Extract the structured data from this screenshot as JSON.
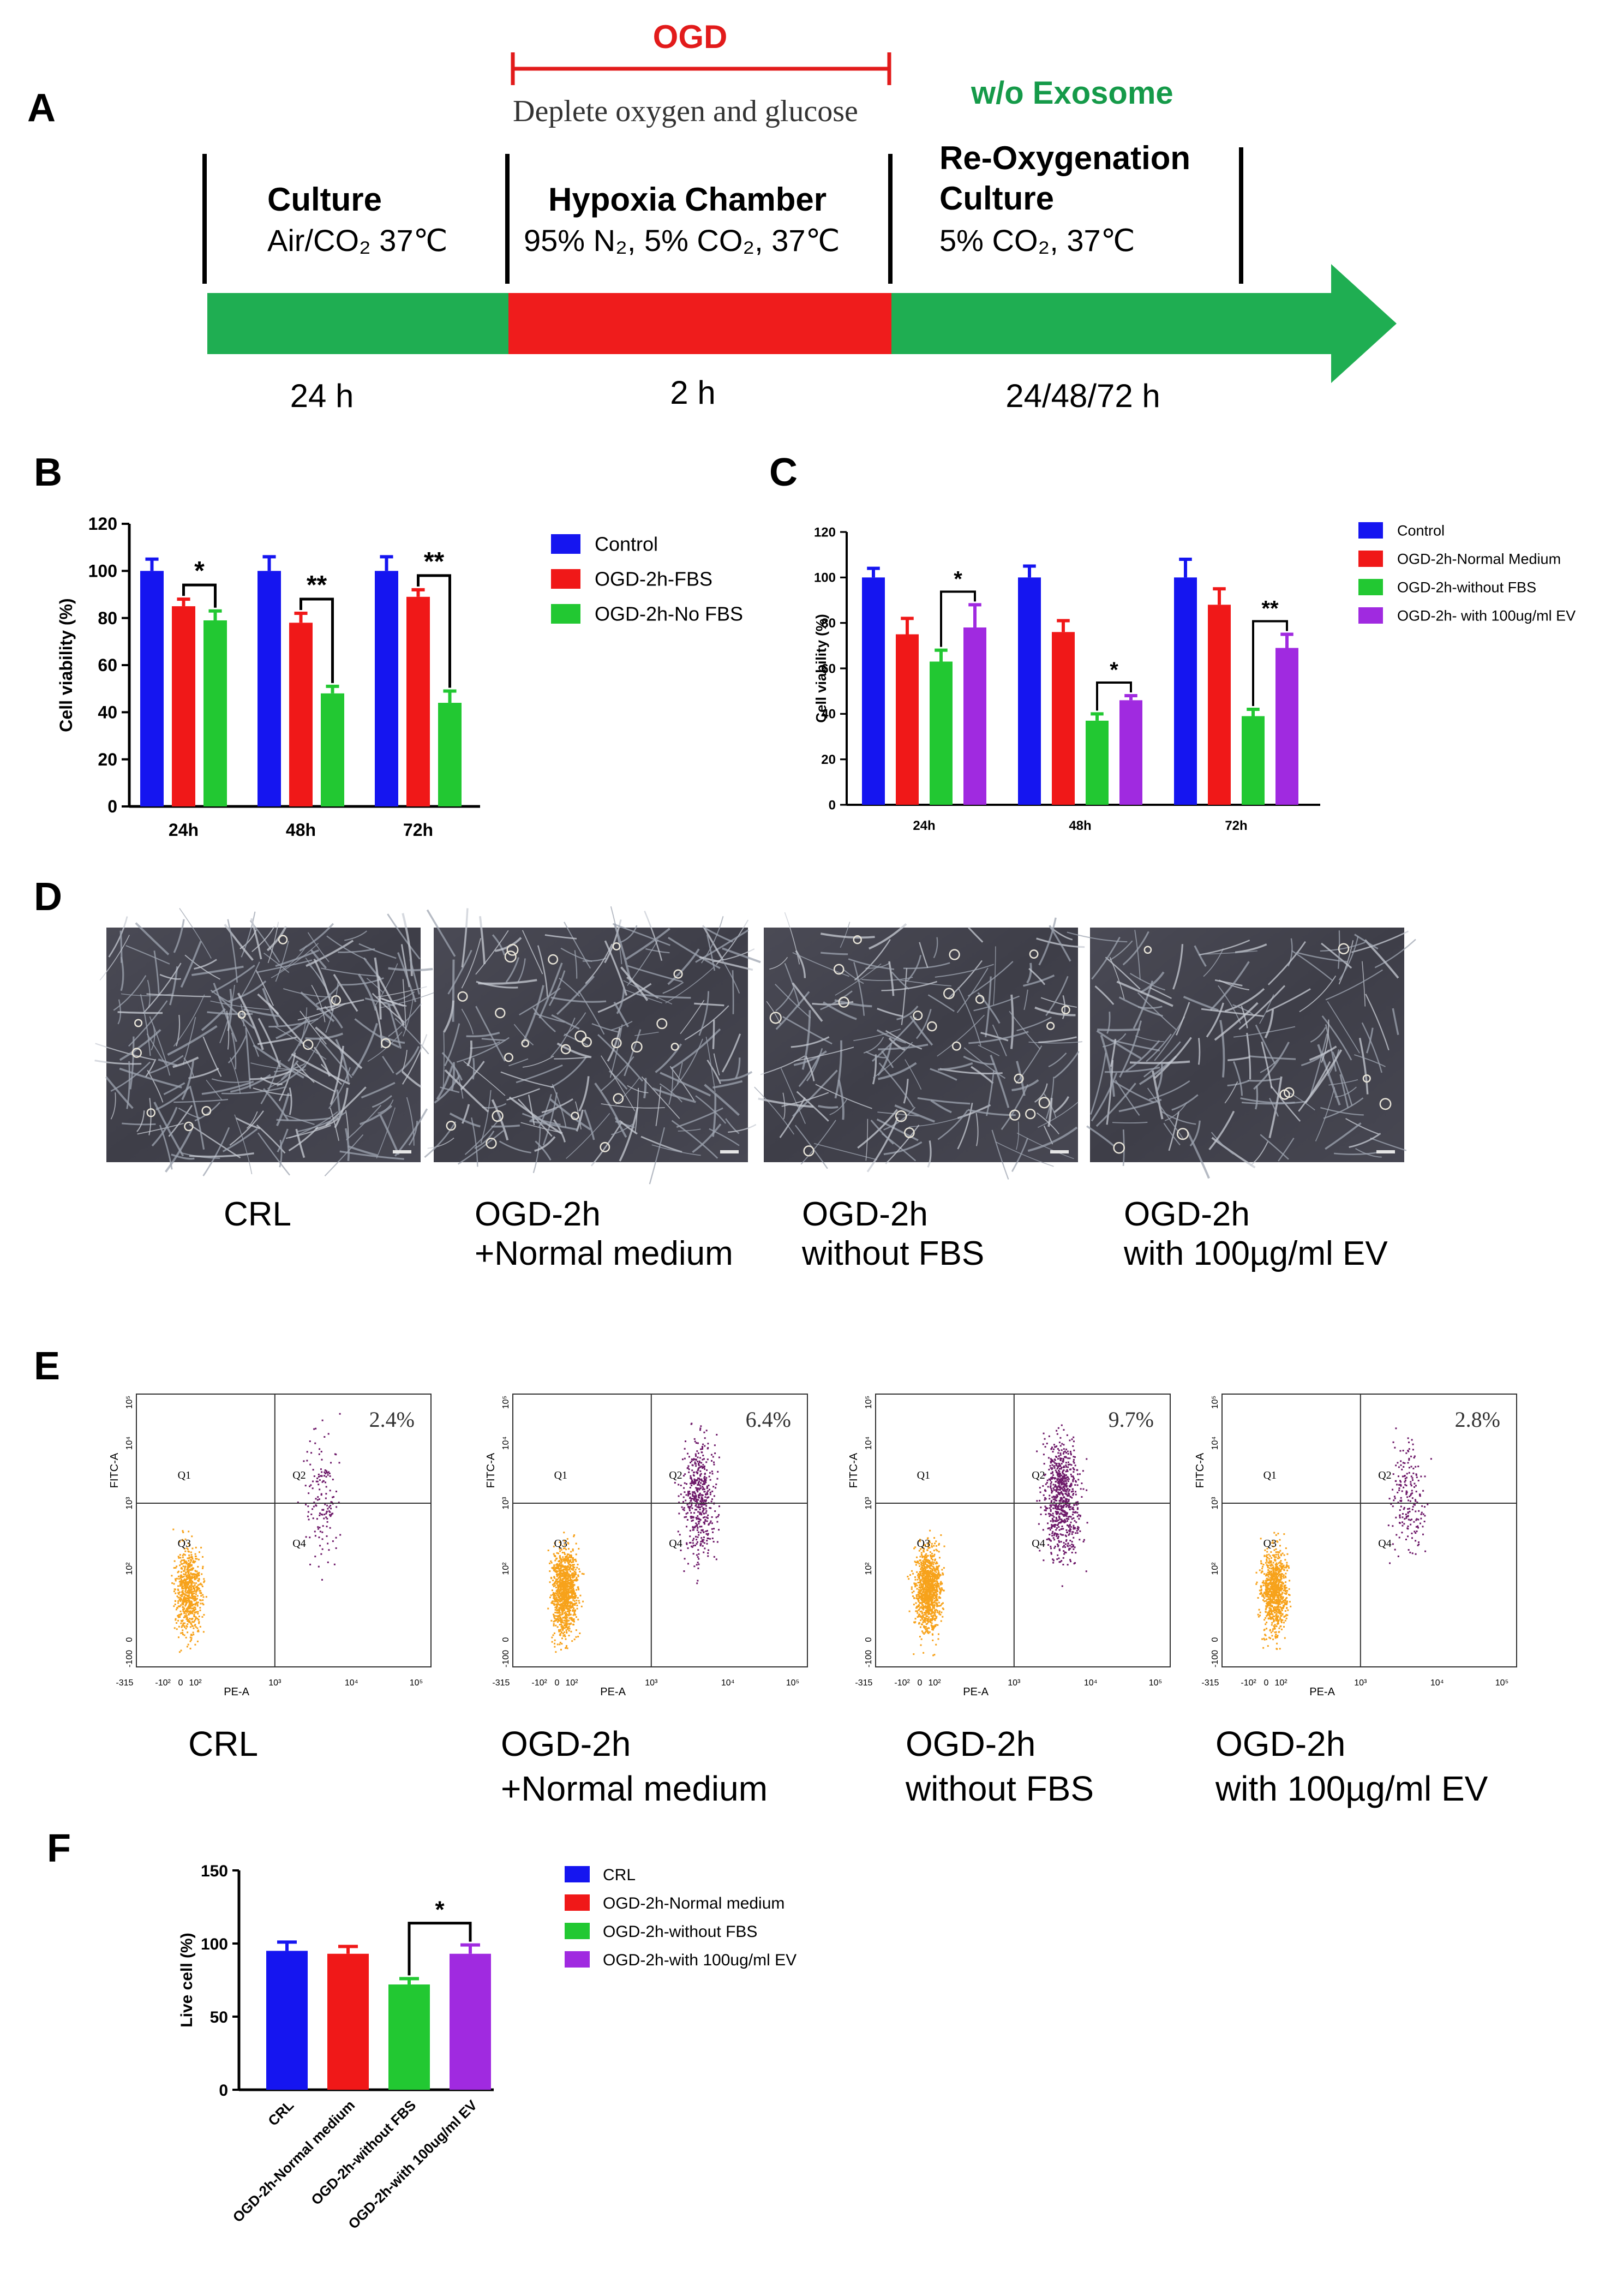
{
  "colors": {
    "blue": "#1515f0",
    "red": "#f01818",
    "green": "#22c832",
    "purple": "#a02ae0",
    "timeline_green": "#1fae52",
    "timeline_red": "#ef1c1c",
    "ogd_red": "#e21b1b",
    "exo_green": "#159a49",
    "grid_line": "#3a3a3a",
    "apoptotic": "#6e1a6a",
    "live": "#f7a21b"
  },
  "panelA": {
    "letter": "A",
    "ogd_label": "OGD",
    "ogd_desc": "Deplete oxygen and glucose",
    "wo_exosome": "w/o Exosome",
    "stages": [
      {
        "title_line1": "Culture",
        "title_line2": "",
        "condition": "Air/CO₂ 37℃",
        "duration": "24 h"
      },
      {
        "title_line1": "Hypoxia Chamber",
        "title_line2": "",
        "condition": "95% N₂, 5% CO₂, 37℃",
        "duration": "2 h"
      },
      {
        "title_line1": "Re-Oxygenation",
        "title_line2": "Culture",
        "condition": "5% CO₂, 37℃",
        "duration": "24/48/72 h"
      }
    ]
  },
  "chart_data": [
    {
      "panel": "B",
      "type": "bar",
      "ylabel": "Cell viability (%)",
      "ylim": [
        0,
        120
      ],
      "yticks": [
        0,
        20,
        40,
        60,
        80,
        100,
        120
      ],
      "categories": [
        "24h",
        "48h",
        "72h"
      ],
      "series": [
        {
          "name": "Control",
          "color": "blue",
          "values": [
            100,
            100,
            100
          ],
          "errors": [
            5,
            6,
            6
          ]
        },
        {
          "name": "OGD-2h-FBS",
          "color": "red",
          "values": [
            85,
            78,
            89
          ],
          "errors": [
            3,
            4,
            3
          ]
        },
        {
          "name": "OGD-2h-No FBS",
          "color": "green",
          "values": [
            79,
            48,
            44
          ],
          "errors": [
            4,
            3,
            5
          ]
        }
      ],
      "significance": [
        {
          "group": 0,
          "from": 1,
          "to": 2,
          "label": "*"
        },
        {
          "group": 1,
          "from": 1,
          "to": 2,
          "label": "**"
        },
        {
          "group": 2,
          "from": 1,
          "to": 2,
          "label": "**"
        }
      ]
    },
    {
      "panel": "C",
      "type": "bar",
      "ylabel": "Cell viability (%)",
      "ylim": [
        0,
        120
      ],
      "yticks": [
        0,
        20,
        40,
        60,
        80,
        100,
        120
      ],
      "categories": [
        "24h",
        "48h",
        "72h"
      ],
      "series": [
        {
          "name": "Control",
          "color": "blue",
          "values": [
            100,
            100,
            100
          ],
          "errors": [
            4,
            5,
            8
          ]
        },
        {
          "name": "OGD-2h-Normal Medium",
          "color": "red",
          "values": [
            75,
            76,
            88
          ],
          "errors": [
            7,
            5,
            7
          ]
        },
        {
          "name": "OGD-2h-without FBS",
          "color": "green",
          "values": [
            63,
            37,
            39
          ],
          "errors": [
            5,
            3,
            3
          ]
        },
        {
          "name": "OGD-2h- with 100ug/ml EV",
          "color": "purple",
          "values": [
            78,
            46,
            69
          ],
          "errors": [
            10,
            2,
            6
          ]
        }
      ],
      "significance": [
        {
          "group": 0,
          "from": 2,
          "to": 3,
          "label": "*"
        },
        {
          "group": 1,
          "from": 2,
          "to": 3,
          "label": "*"
        },
        {
          "group": 2,
          "from": 2,
          "to": 3,
          "label": "**"
        }
      ]
    },
    {
      "panel": "E",
      "type": "scatter",
      "xlabel": "PE-A",
      "ylabel": "FITC-A",
      "quadrants": [
        "Q1",
        "Q2",
        "Q3",
        "Q4"
      ],
      "x_ticks": [
        "-315",
        "-10²",
        "0",
        "10²",
        "10³",
        "10⁴",
        "10⁵"
      ],
      "y_ticks": [
        "-100",
        "0",
        "10²",
        "10³",
        "10⁴",
        "10⁵"
      ],
      "plots": [
        {
          "label": "CRL",
          "q2_percent": "2.4%"
        },
        {
          "label": "OGD-2h +Normal medium",
          "q2_percent": "6.4%"
        },
        {
          "label": "OGD-2h without FBS",
          "q2_percent": "9.7%"
        },
        {
          "label": "OGD-2h with 100µg/ml EV",
          "q2_percent": "2.8%"
        }
      ]
    },
    {
      "panel": "F",
      "type": "bar",
      "ylabel": "Live cell (%)",
      "ylim": [
        0,
        150
      ],
      "yticks": [
        0,
        50,
        100,
        150
      ],
      "categories": [
        "CRL",
        "OGD-2h-Normal medium",
        "OGD-2h-without FBS",
        "OGD-2h-with 100ug/ml EV"
      ],
      "series": [
        {
          "name": "Live cell",
          "values": [
            95,
            93,
            72,
            93
          ],
          "errors": [
            6,
            5,
            4,
            6
          ],
          "colors": [
            "blue",
            "red",
            "green",
            "purple"
          ]
        }
      ],
      "legend": [
        "CRL",
        "OGD-2h-Normal medium",
        "OGD-2h-without FBS",
        "OGD-2h-with 100ug/ml EV"
      ],
      "significance": [
        {
          "from": 2,
          "to": 3,
          "label": "*"
        }
      ]
    }
  ],
  "panelB": {
    "letter": "B"
  },
  "panelC": {
    "letter": "C"
  },
  "panelD": {
    "letter": "D",
    "labels": [
      {
        "line1": "CRL",
        "line2": ""
      },
      {
        "line1": "OGD-2h",
        "line2": "+Normal medium"
      },
      {
        "line1": "OGD-2h",
        "line2": "without FBS"
      },
      {
        "line1": "OGD-2h",
        "line2": "with 100µg/ml EV"
      }
    ]
  },
  "panelE": {
    "letter": "E",
    "labels": [
      {
        "line1": "CRL",
        "line2": ""
      },
      {
        "line1": "OGD-2h",
        "line2": "+Normal medium"
      },
      {
        "line1": "OGD-2h",
        "line2": "without FBS"
      },
      {
        "line1": "OGD-2h",
        "line2": "with 100µg/ml EV"
      }
    ]
  },
  "panelF": {
    "letter": "F"
  }
}
